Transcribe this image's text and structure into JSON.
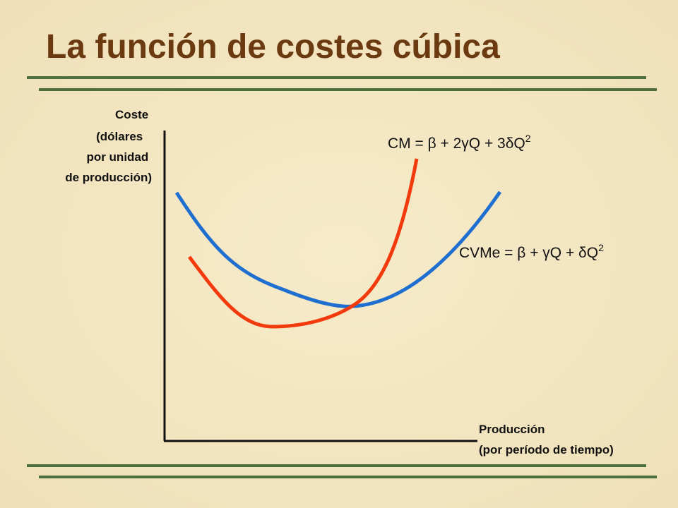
{
  "title": "La función de costes cúbica",
  "y_axis_label": [
    "Coste",
    "(dólares",
    "por unidad",
    "de producción)"
  ],
  "x_axis_label": [
    "Producción",
    "(por período de tiempo)"
  ],
  "curves": [
    {
      "label": "CM = β + 2γQ + 3δQ",
      "exponent": "2"
    },
    {
      "label": "CVMe = β + γQ + δQ",
      "exponent": "2"
    }
  ]
}
